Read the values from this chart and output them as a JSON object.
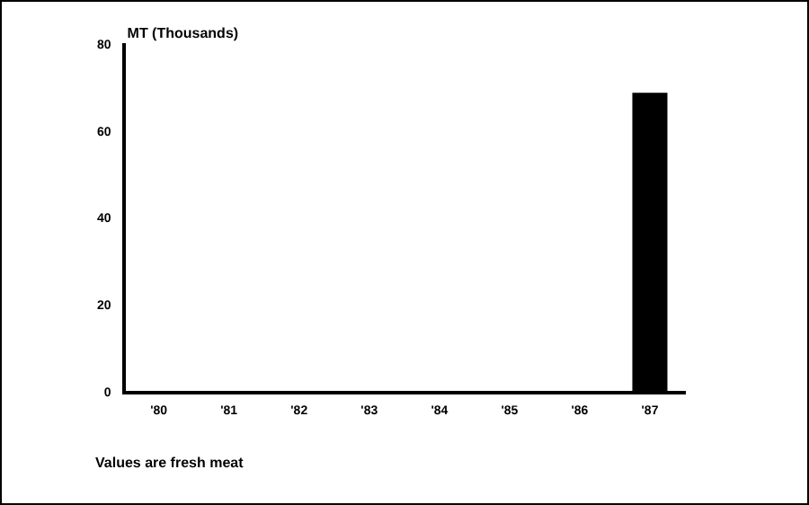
{
  "chart_data": {
    "type": "bar",
    "ylabel": "MT (Thousands)",
    "categories": [
      "'80",
      "'81",
      "'82",
      "'83",
      "'84",
      "'85",
      "'86",
      "'87"
    ],
    "values": [
      0,
      0,
      0,
      0,
      0,
      0,
      0,
      69
    ],
    "color": "#000000",
    "ylim": [
      0,
      80
    ],
    "yticks": [
      0,
      20,
      40,
      60,
      80
    ],
    "grid": false,
    "annotations": [
      "Values are fresh meat"
    ]
  }
}
